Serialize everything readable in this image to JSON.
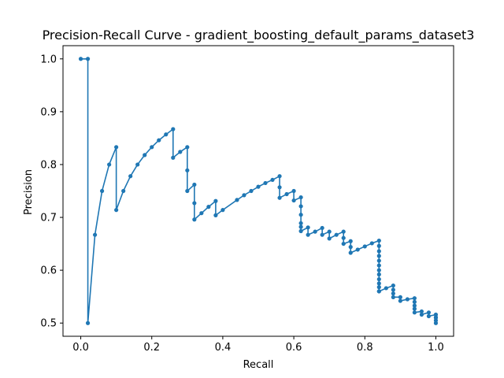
{
  "chart_data": {
    "type": "line",
    "title": "Precision-Recall Curve - gradient_boosting_default_params_dataset3",
    "xlabel": "Recall",
    "ylabel": "Precision",
    "xlim": [
      -0.05,
      1.05
    ],
    "ylim": [
      0.475,
      1.025
    ],
    "xticks": [
      "0.0",
      "0.2",
      "0.4",
      "0.6",
      "0.8",
      "1.0"
    ],
    "yticks": [
      "0.5",
      "0.6",
      "0.7",
      "0.8",
      "0.9",
      "1.0"
    ],
    "grid": false,
    "line_color": "#1f77b4",
    "marker": "circle",
    "series": [
      {
        "x": [
          0.0,
          0.02,
          0.02,
          0.04,
          0.06,
          0.08,
          0.1,
          0.1,
          0.12,
          0.14,
          0.16,
          0.18,
          0.2,
          0.22,
          0.24,
          0.26,
          0.26,
          0.28,
          0.3,
          0.3,
          0.3,
          0.32,
          0.32,
          0.32,
          0.34,
          0.36,
          0.38,
          0.38,
          0.4,
          0.44,
          0.46,
          0.48,
          0.5,
          0.52,
          0.54,
          0.56,
          0.56,
          0.56,
          0.58,
          0.6,
          0.6,
          0.62,
          0.62,
          0.62,
          0.62,
          0.62,
          0.62,
          0.64,
          0.64,
          0.66,
          0.68,
          0.68,
          0.7,
          0.7,
          0.72,
          0.74,
          0.74,
          0.74,
          0.76,
          0.76,
          0.76,
          0.78,
          0.8,
          0.82,
          0.84,
          0.84,
          0.84,
          0.84,
          0.84,
          0.84,
          0.84,
          0.84,
          0.84,
          0.84,
          0.84,
          0.84,
          0.84,
          0.86,
          0.88,
          0.88,
          0.88,
          0.88,
          0.9,
          0.9,
          0.92,
          0.94,
          0.94,
          0.94,
          0.94,
          0.94,
          0.96,
          0.96,
          0.98,
          0.98,
          1.0,
          1.0,
          1.0,
          1.0,
          1.0
        ],
        "y": [
          1.0,
          1.0,
          0.5,
          0.667,
          0.75,
          0.8,
          0.833,
          0.714,
          0.75,
          0.778,
          0.8,
          0.818,
          0.833,
          0.846,
          0.857,
          0.867,
          0.813,
          0.824,
          0.833,
          0.789,
          0.75,
          0.762,
          0.727,
          0.696,
          0.708,
          0.72,
          0.731,
          0.704,
          0.714,
          0.733,
          0.742,
          0.75,
          0.758,
          0.765,
          0.771,
          0.778,
          0.757,
          0.737,
          0.744,
          0.75,
          0.732,
          0.738,
          0.721,
          0.705,
          0.689,
          0.682,
          0.674,
          0.681,
          0.667,
          0.673,
          0.68,
          0.667,
          0.673,
          0.66,
          0.667,
          0.673,
          0.661,
          0.65,
          0.655,
          0.644,
          0.633,
          0.639,
          0.645,
          0.651,
          0.656,
          0.646,
          0.636,
          0.627,
          0.618,
          0.609,
          0.6,
          0.592,
          0.583,
          0.575,
          0.568,
          0.56,
          0.56,
          0.566,
          0.571,
          0.563,
          0.556,
          0.549,
          0.549,
          0.542,
          0.545,
          0.547,
          0.54,
          0.533,
          0.527,
          0.52,
          0.522,
          0.516,
          0.52,
          0.513,
          0.516,
          0.511,
          0.505,
          0.5,
          0.51
        ]
      }
    ]
  }
}
